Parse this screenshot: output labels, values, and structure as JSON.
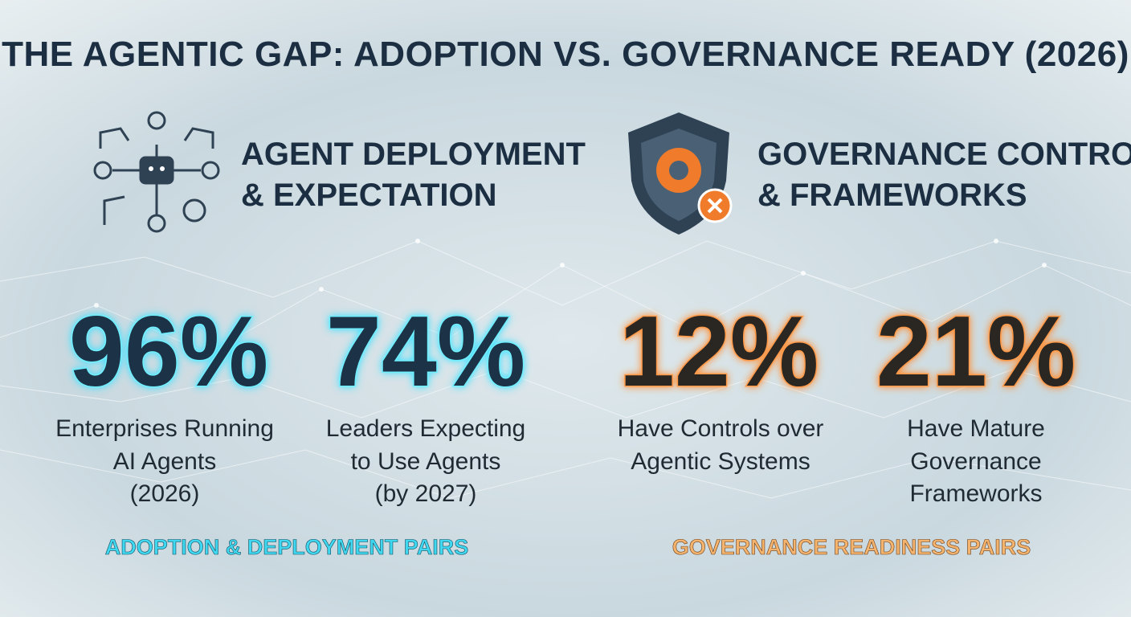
{
  "title": "THE AGENTIC GAP: ADOPTION VS. GOVERNANCE READY (2026)",
  "sections": [
    {
      "heading": [
        "AGENT DEPLOYMENT",
        "& EXPECTATION"
      ],
      "stats": [
        {
          "value": "96%",
          "label": [
            "Enterprises Running",
            "AI Agents",
            "(2026)"
          ]
        },
        {
          "value": "74%",
          "label": [
            "Leaders Expecting",
            "to Use Agents",
            "(by 2027)"
          ]
        }
      ],
      "footer": "ADOPTION & DEPLOYMENT PAIRS"
    },
    {
      "heading": [
        "GOVERNANCE CONTROLS",
        "& FRAMEWORKS"
      ],
      "stats": [
        {
          "value": "12%",
          "label": [
            "Have Controls over",
            "Agentic Systems"
          ]
        },
        {
          "value": "21%",
          "label": [
            "Have Mature",
            "Governance",
            "Frameworks"
          ]
        }
      ],
      "footer": "GOVERNANCE READINESS PAIRS"
    }
  ]
}
